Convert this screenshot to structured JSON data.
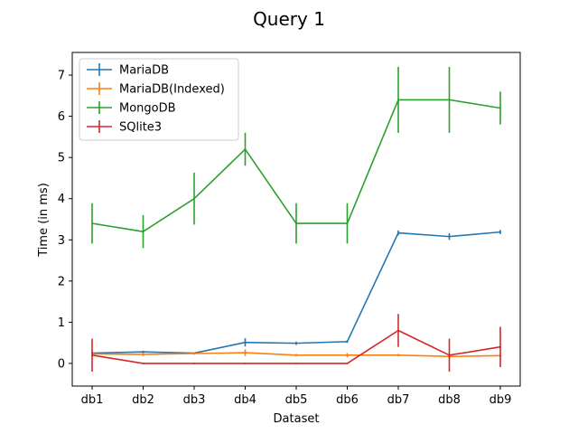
{
  "chart_data": {
    "type": "line",
    "title": "Query 1",
    "xlabel": "Dataset",
    "ylabel": "Time (in ms)",
    "categories": [
      "db1",
      "db2",
      "db3",
      "db4",
      "db5",
      "db6",
      "db7",
      "db8",
      "db9"
    ],
    "ylim": [
      -0.55,
      7.55
    ],
    "yticks": [
      0,
      1,
      2,
      3,
      4,
      5,
      6,
      7
    ],
    "grid": false,
    "legend_position": "top-left",
    "series": [
      {
        "name": "MariaDB",
        "color": "#1f77b4",
        "values": [
          0.25,
          0.28,
          0.25,
          0.51,
          0.49,
          0.53,
          3.17,
          3.08,
          3.19
        ],
        "errors": [
          0.02,
          0.03,
          0.02,
          0.1,
          0.04,
          0.03,
          0.06,
          0.08,
          0.05
        ]
      },
      {
        "name": "MariaDB(Indexed)",
        "color": "#ff7f0e",
        "values": [
          0.23,
          0.22,
          0.24,
          0.26,
          0.2,
          0.2,
          0.2,
          0.17,
          0.19
        ],
        "errors": [
          0.07,
          0.04,
          0.03,
          0.08,
          0.03,
          0.05,
          0.03,
          0.04,
          0.03
        ]
      },
      {
        "name": "MongoDB",
        "color": "#2ca02c",
        "values": [
          3.4,
          3.2,
          4.0,
          5.2,
          3.4,
          3.4,
          6.4,
          6.4,
          6.2
        ],
        "errors": [
          0.49,
          0.4,
          0.63,
          0.4,
          0.49,
          0.49,
          0.8,
          0.8,
          0.4
        ]
      },
      {
        "name": "SQlite3",
        "color": "#d62728",
        "values": [
          0.2,
          0.0,
          0.0,
          0.0,
          0.0,
          0.0,
          0.8,
          0.2,
          0.4
        ],
        "errors": [
          0.4,
          0.0,
          0.0,
          0.0,
          0.0,
          0.0,
          0.4,
          0.4,
          0.49
        ]
      }
    ]
  }
}
